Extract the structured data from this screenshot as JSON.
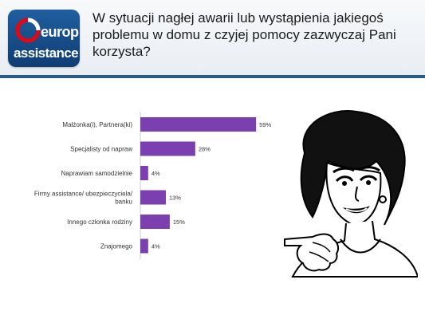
{
  "header": {
    "title": "W sytuacji nagłej awarii lub wystąpienia jakiegoś problemu w domu z czyjej pomocy zazwyczaj Pani korzysta?",
    "logo": {
      "word1": "europ",
      "word2": "assistance"
    }
  },
  "colors": {
    "bar": "#7b3fb0",
    "header_border": "#2a5a86",
    "logo_bg": "#1a4f8c",
    "logo_red": "#e30613"
  },
  "illustration": {
    "icon": "pointing-woman-illustration"
  },
  "chart_data": {
    "type": "bar",
    "orientation": "horizontal",
    "categories": [
      "Małżonka(i), Partnera(ki)",
      "Specjalisty od napraw",
      "Naprawiam samodzielnie",
      "Firmy assistance/ ubezpieczyciela/ banku",
      "Innego członka rodziny",
      "Znajomego"
    ],
    "category_lines": [
      [
        "Małżonka(i), Partnera(ki)"
      ],
      [
        "Specjalisty od napraw"
      ],
      [
        "Naprawiam samodzielnie"
      ],
      [
        "Firmy assistance/ ubezpieczyciela/",
        "banku"
      ],
      [
        "Innego członka rodziny"
      ],
      [
        "Znajomego"
      ]
    ],
    "values": [
      59,
      28,
      4,
      13,
      15,
      4
    ],
    "value_labels": [
      "59%",
      "28%",
      "4%",
      "13%",
      "15%",
      "4%"
    ],
    "xlim": [
      0,
      100
    ],
    "grid": false,
    "legend": "none"
  }
}
